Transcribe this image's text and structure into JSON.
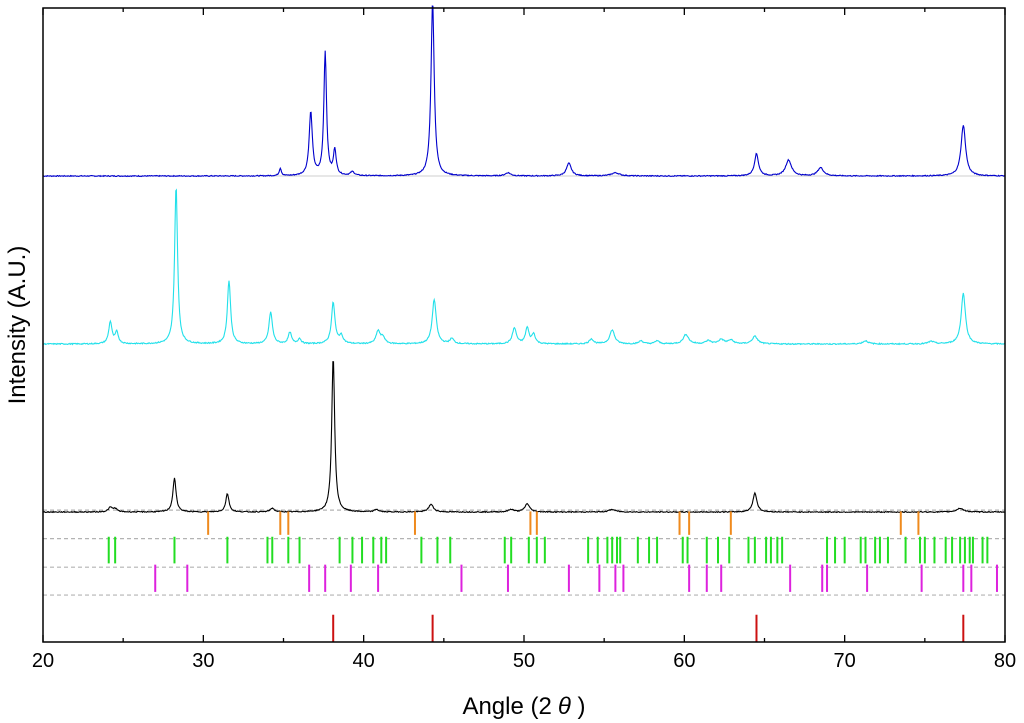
{
  "chart_data": {
    "type": "line",
    "xlabel_prefix": "Angle (2",
    "xlabel_symbol": "θ",
    "xlabel_suffix": " )",
    "ylabel": "Intensity (A.U.)",
    "xlim": [
      20,
      80
    ],
    "ylim": [
      0,
      100
    ],
    "xticks": [
      20,
      30,
      40,
      50,
      60,
      70,
      80
    ],
    "grid": false,
    "series": [
      {
        "color": "#0000cc",
        "baseline": 73.5,
        "noise": 0.15,
        "peaks": [
          [
            34.8,
            1.2,
            0.08
          ],
          [
            36.7,
            10,
            0.12
          ],
          [
            37.6,
            19.5,
            0.1
          ],
          [
            38.2,
            4,
            0.1
          ],
          [
            39.3,
            0.6,
            0.15
          ],
          [
            44.3,
            27.5,
            0.12
          ],
          [
            49.0,
            0.5,
            0.2
          ],
          [
            52.8,
            2,
            0.18
          ],
          [
            55.7,
            0.5,
            0.3
          ],
          [
            64.5,
            3.5,
            0.15
          ],
          [
            66.5,
            2.5,
            0.22
          ],
          [
            68.5,
            1.3,
            0.22
          ],
          [
            77.4,
            8,
            0.17
          ]
        ]
      },
      {
        "color": "#22e0ea",
        "baseline": 47.0,
        "noise": 0.18,
        "peaks": [
          [
            24.2,
            3.5,
            0.12
          ],
          [
            24.6,
            1.8,
            0.12
          ],
          [
            28.3,
            25,
            0.11
          ],
          [
            31.6,
            10,
            0.12
          ],
          [
            34.2,
            5,
            0.13
          ],
          [
            35.4,
            1.8,
            0.12
          ],
          [
            36.0,
            0.8,
            0.12
          ],
          [
            38.1,
            6.5,
            0.13
          ],
          [
            38.6,
            1.2,
            0.15
          ],
          [
            40.9,
            2,
            0.15
          ],
          [
            41.2,
            1,
            0.15
          ],
          [
            44.4,
            7,
            0.15
          ],
          [
            45.5,
            0.8,
            0.15
          ],
          [
            49.4,
            2.5,
            0.15
          ],
          [
            50.2,
            2.5,
            0.13
          ],
          [
            50.6,
            1.5,
            0.13
          ],
          [
            54.2,
            0.8,
            0.15
          ],
          [
            55.5,
            2.2,
            0.18
          ],
          [
            57.3,
            0.5,
            0.15
          ],
          [
            58.3,
            0.5,
            0.15
          ],
          [
            60.1,
            1.5,
            0.2
          ],
          [
            61.5,
            0.5,
            0.2
          ],
          [
            62.3,
            0.7,
            0.2
          ],
          [
            62.9,
            0.6,
            0.2
          ],
          [
            64.4,
            1.2,
            0.2
          ],
          [
            71.3,
            0.5,
            0.2
          ],
          [
            75.4,
            0.4,
            0.2
          ],
          [
            77.4,
            8,
            0.16
          ]
        ]
      },
      {
        "color": "#000000",
        "baseline": 20.5,
        "noise": 0.15,
        "peaks": [
          [
            24.2,
            0.7,
            0.15
          ],
          [
            24.5,
            0.5,
            0.15
          ],
          [
            28.2,
            5.3,
            0.12
          ],
          [
            31.5,
            2.9,
            0.12
          ],
          [
            34.3,
            0.6,
            0.15
          ],
          [
            38.1,
            24.5,
            0.11
          ],
          [
            40.8,
            0.4,
            0.15
          ],
          [
            44.2,
            1.2,
            0.18
          ],
          [
            49.2,
            0.4,
            0.2
          ],
          [
            50.2,
            1.3,
            0.18
          ],
          [
            55.5,
            0.4,
            0.25
          ],
          [
            64.4,
            3,
            0.15
          ],
          [
            77.2,
            0.6,
            0.25
          ]
        ]
      }
    ],
    "reference_markers": [
      {
        "color": "#ef8a1d",
        "row_bottom": 16.9,
        "row_top": 20.6,
        "positions": [
          30.3,
          34.8,
          35.3,
          43.2,
          50.4,
          50.8,
          59.7,
          60.3,
          62.9,
          73.5,
          74.6
        ]
      },
      {
        "color": "#22dd22",
        "row_bottom": 12.4,
        "row_top": 16.6,
        "positions": [
          24.1,
          24.5,
          28.2,
          31.5,
          34.0,
          34.3,
          35.3,
          36.0,
          38.5,
          39.3,
          39.9,
          40.6,
          41.1,
          41.4,
          43.6,
          44.6,
          45.4,
          48.8,
          49.2,
          50.3,
          50.8,
          51.3,
          54.0,
          54.6,
          55.2,
          55.5,
          55.8,
          56.0,
          57.1,
          57.8,
          58.3,
          59.9,
          60.2,
          61.4,
          62.1,
          62.8,
          64.0,
          64.4,
          65.1,
          65.4,
          65.8,
          66.1,
          68.9,
          69.4,
          70.0,
          71.0,
          71.3,
          71.9,
          72.2,
          72.7,
          73.8,
          74.7,
          75.0,
          75.6,
          76.3,
          76.7,
          77.2,
          77.5,
          77.8,
          78.0,
          78.6,
          78.9
        ]
      },
      {
        "color": "#dd22dd",
        "row_bottom": 7.9,
        "row_top": 12.2,
        "positions": [
          27.0,
          29.0,
          36.6,
          37.6,
          39.2,
          40.9,
          46.1,
          49.0,
          52.8,
          54.7,
          55.7,
          56.2,
          60.3,
          61.4,
          62.3,
          66.6,
          68.6,
          68.9,
          71.4,
          74.8,
          77.4,
          77.9,
          79.5
        ]
      },
      {
        "color": "#cc1111",
        "row_bottom": 0,
        "row_top": 4.3,
        "positions": [
          38.1,
          44.3,
          64.5,
          77.4
        ]
      }
    ],
    "separators": [
      20.8,
      16.3,
      11.8,
      7.4
    ]
  }
}
